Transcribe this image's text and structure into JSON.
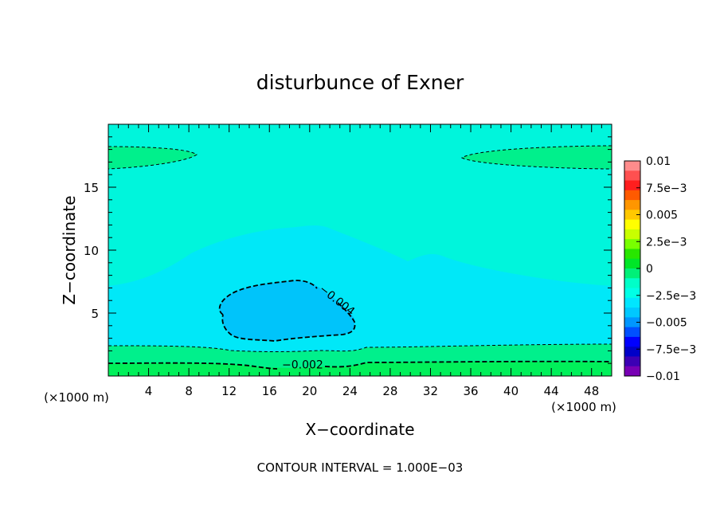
{
  "chart_data": {
    "type": "contour",
    "title": "disturbunce of Exner",
    "xlabel": "X−coordinate",
    "ylabel": "Z−coordinate",
    "x_unit_label": "(×1000 m)",
    "x_unit_label_right": "(×1000 m)",
    "footer": "CONTOUR INTERVAL = 1.000E−03",
    "xlim": [
      0,
      50
    ],
    "ylim": [
      0,
      20
    ],
    "x_ticks": [
      "4",
      "8",
      "12",
      "16",
      "20",
      "24",
      "28",
      "32",
      "36",
      "40",
      "44",
      "48"
    ],
    "x_tick_values": [
      4,
      8,
      12,
      16,
      20,
      24,
      28,
      32,
      36,
      40,
      44,
      48
    ],
    "y_ticks": [
      "5",
      "10",
      "15"
    ],
    "y_tick_values": [
      5,
      10,
      15
    ],
    "contour_labels": [
      {
        "text": "−0.004",
        "x": 22.5,
        "z": 5.8,
        "angle": 38
      },
      {
        "text": "−0.002",
        "x": 19.3,
        "z": 0.6,
        "angle": 0
      }
    ],
    "colorbar": {
      "min": -0.01,
      "max": 0.01,
      "labels": [
        "0.01",
        "7.5e−3",
        "0.005",
        "2.5e−3",
        "0",
        "−2.5e−3",
        "−0.005",
        "−7.5e−3",
        "−0.01"
      ],
      "colors_top_to_bottom": [
        "#ff8c8c",
        "#ff5050",
        "#ff1e1e",
        "#ff5a00",
        "#ff9600",
        "#ffc800",
        "#ffff00",
        "#c8ff00",
        "#78ff00",
        "#28e600",
        "#00e628",
        "#00f078",
        "#00ffc8",
        "#00ffe6",
        "#00e6ff",
        "#00c8ff",
        "#0096ff",
        "#0050ff",
        "#0000ff",
        "#0000c8",
        "#3c00b4",
        "#7800b4"
      ]
    },
    "regions": {
      "background_color": "#00f5dc",
      "outer_blue_color": "#00e8f8",
      "inner_blue_color": "#00c4fa",
      "green_bands_color": "#00f08c",
      "bottom_green_color": "#00f05a"
    }
  }
}
